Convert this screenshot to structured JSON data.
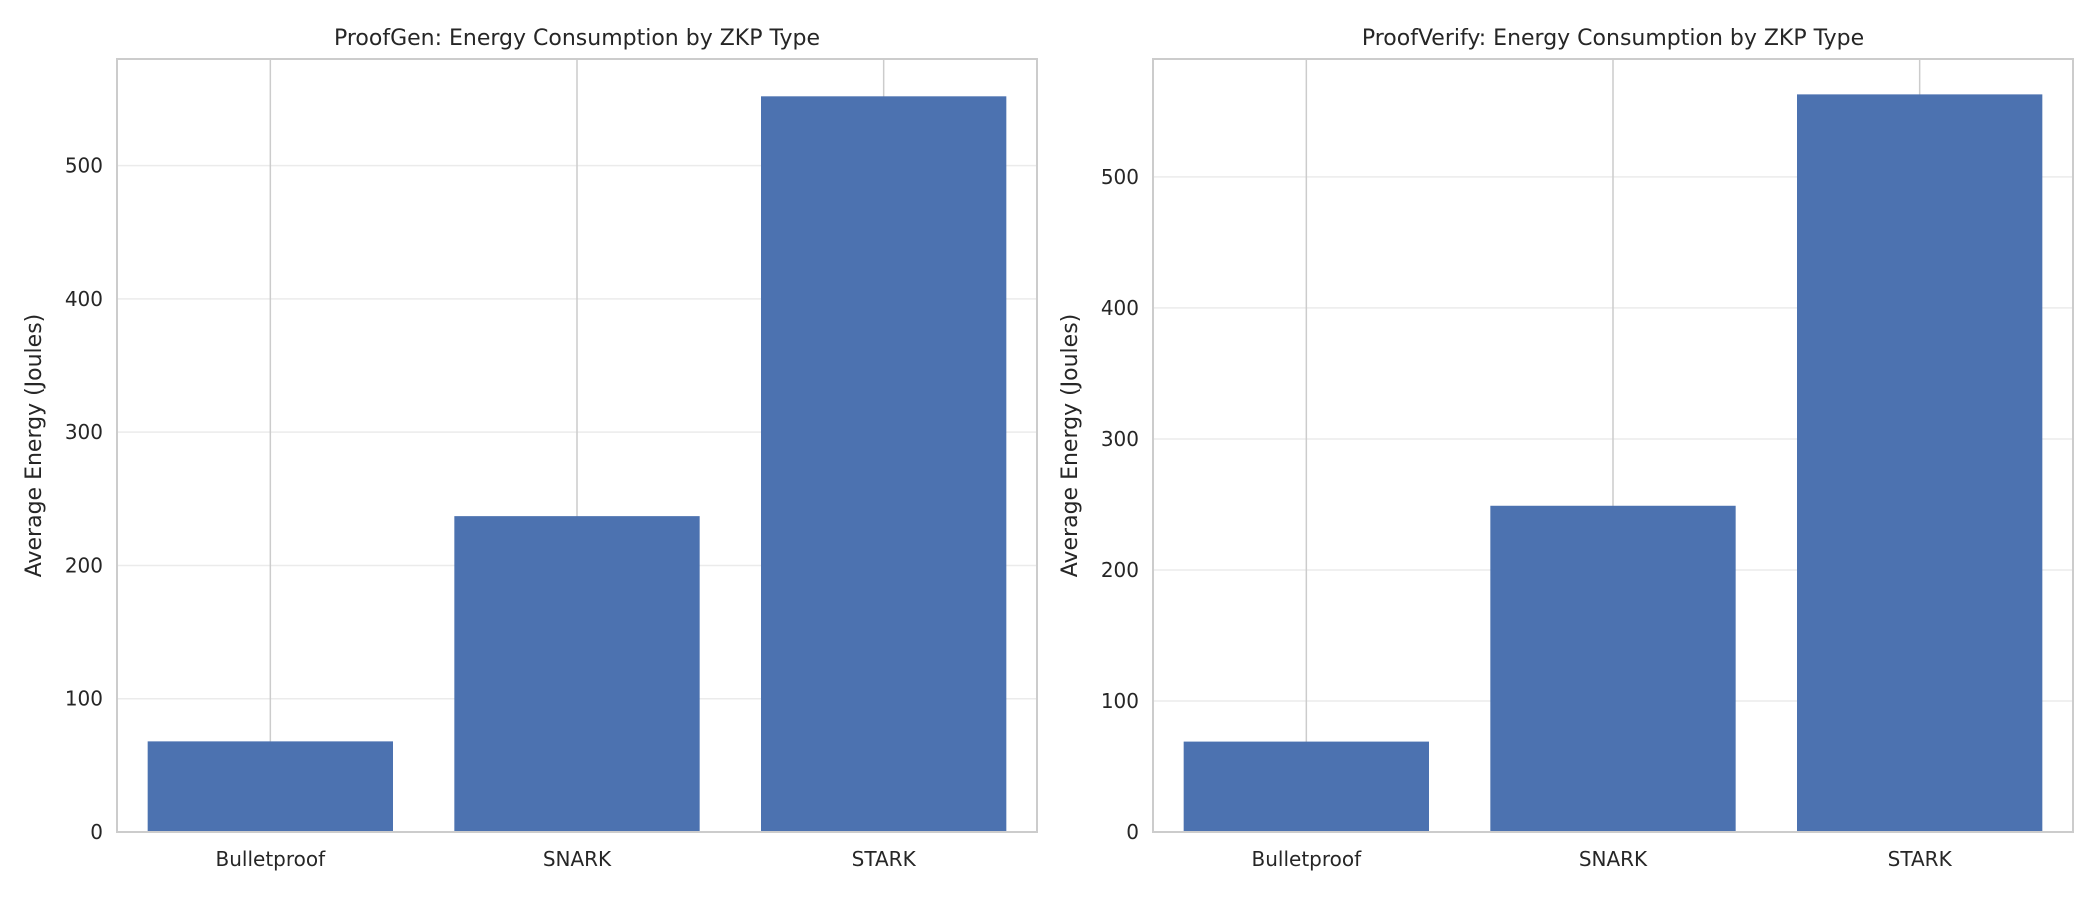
{
  "chart_data": [
    {
      "type": "bar",
      "title": "ProofGen: Energy Consumption by ZKP Type",
      "xlabel": "",
      "ylabel": "Average Energy (Joules)",
      "categories": [
        "Bulletproof",
        "SNARK",
        "STARK"
      ],
      "values": [
        68,
        237,
        552
      ],
      "ylim": [
        0,
        580
      ],
      "yticks": [
        0,
        100,
        200,
        300,
        400,
        500
      ],
      "grid": "y",
      "bar_color": "#4c72b0"
    },
    {
      "type": "bar",
      "title": "ProofVerify: Energy Consumption by ZKP Type",
      "xlabel": "",
      "ylabel": "Average Energy (Joules)",
      "categories": [
        "Bulletproof",
        "SNARK",
        "STARK"
      ],
      "values": [
        69,
        249,
        563
      ],
      "ylim": [
        0,
        590
      ],
      "yticks": [
        0,
        100,
        200,
        300,
        400,
        500
      ],
      "grid": "y",
      "bar_color": "#4c72b0"
    }
  ]
}
